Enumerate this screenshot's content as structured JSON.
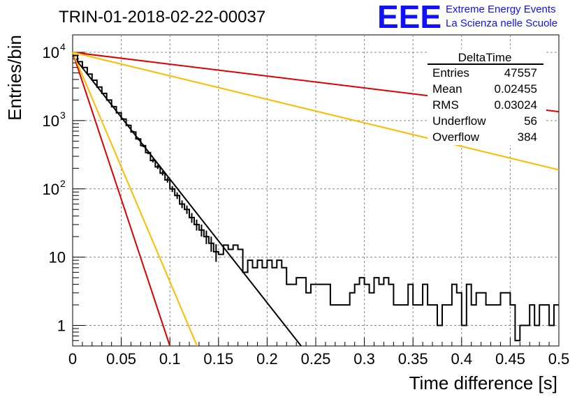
{
  "header": {
    "run_title": "TRIN-01-2018-02-22-00037",
    "logo_text": "EEE",
    "logo_line1": "Extreme Energy Events",
    "logo_line2": "La Scienza nelle Scuole",
    "logo_color": "#1010ff"
  },
  "stats_box": {
    "title": "DeltaTime",
    "rows": [
      {
        "label": "Entries",
        "value": "47557"
      },
      {
        "label": "Mean",
        "value": "0.02455"
      },
      {
        "label": "RMS",
        "value": "0.03024"
      },
      {
        "label": "Underflow",
        "value": "56"
      },
      {
        "label": "Overflow",
        "value": "384"
      }
    ]
  },
  "chart_data": {
    "type": "line",
    "title": "TRIN-01-2018-02-22-00037",
    "xlabel": "Time difference [s]",
    "ylabel": "Entries/bin",
    "xlim": [
      0,
      0.5
    ],
    "ylim": [
      0.5,
      18000
    ],
    "y_scale": "log",
    "grid": true,
    "x_ticks": [
      "0",
      "0.05",
      "0.1",
      "0.15",
      "0.2",
      "0.25",
      "0.3",
      "0.35",
      "0.4",
      "0.45",
      "0.5"
    ],
    "y_ticks": [
      {
        "value": 1,
        "label": "1"
      },
      {
        "value": 10,
        "label": "10"
      },
      {
        "value": 100,
        "label": "10",
        "exp": "2"
      },
      {
        "value": 1000,
        "label": "10",
        "exp": "3"
      },
      {
        "value": 10000,
        "label": "10",
        "exp": "4"
      }
    ],
    "histogram": {
      "bin_width": 0.005,
      "color": "#000000",
      "values": [
        9000,
        7300,
        6000,
        4800,
        3900,
        3100,
        2500,
        2000,
        1600,
        1300,
        1050,
        850,
        680,
        540,
        430,
        340,
        260,
        210,
        170,
        135,
        100,
        80,
        60,
        50,
        38,
        30,
        25,
        20,
        16,
        12,
        11,
        15,
        13,
        15,
        13,
        6,
        9,
        7,
        9,
        7,
        9,
        7,
        9,
        7,
        4,
        4,
        5,
        5,
        3,
        4,
        4,
        4,
        4,
        2,
        2,
        2,
        2,
        3,
        4,
        5,
        4,
        3,
        5,
        4,
        5,
        4,
        2,
        2,
        2,
        4,
        2,
        2,
        4,
        2,
        2,
        1,
        2,
        2,
        4,
        3,
        1,
        4,
        2,
        3,
        3,
        2,
        2,
        2,
        3,
        3,
        2,
        0.6,
        1,
        1,
        2,
        1,
        2,
        2,
        1,
        2
      ]
    },
    "series": [
      {
        "color": "#000000",
        "x": [
          0,
          0.235
        ],
        "y": [
          9000,
          0.5
        ]
      },
      {
        "color": "#dd0000",
        "x": [
          0,
          0.1
        ],
        "y": [
          10000,
          0.5
        ]
      },
      {
        "color": "#dd0000",
        "x": [
          0,
          0.5
        ],
        "y": [
          10000,
          1350
        ]
      },
      {
        "color": "#ffbb00",
        "x": [
          0,
          0.128
        ],
        "y": [
          10000,
          0.5
        ]
      },
      {
        "color": "#ffbb00",
        "x": [
          0,
          0.5
        ],
        "y": [
          10000,
          190
        ]
      }
    ]
  }
}
